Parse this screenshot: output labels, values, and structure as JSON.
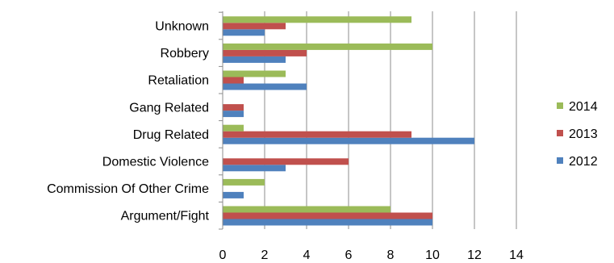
{
  "chart_data": {
    "type": "bar",
    "orientation": "horizontal",
    "title": "",
    "xlabel": "",
    "ylabel": "",
    "categories": [
      "Argument/Fight",
      "Commission Of Other Crime",
      "Domestic Violence",
      "Drug Related",
      "Gang Related",
      "Retaliation",
      "Robbery",
      "Unknown"
    ],
    "series": [
      {
        "name": "2012",
        "color": "#4f81bd",
        "values": [
          10,
          1,
          3,
          12,
          1,
          4,
          3,
          2
        ]
      },
      {
        "name": "2013",
        "color": "#c0504d",
        "values": [
          10,
          0,
          6,
          9,
          1,
          1,
          4,
          3
        ]
      },
      {
        "name": "2014",
        "color": "#9bbb59",
        "values": [
          8,
          2,
          0,
          1,
          0,
          3,
          10,
          9
        ]
      }
    ],
    "xlim": [
      0,
      14
    ],
    "xticks": [
      "0",
      "2",
      "4",
      "6",
      "8",
      "10",
      "12",
      "14"
    ],
    "grid": true,
    "legend_position": "right"
  }
}
